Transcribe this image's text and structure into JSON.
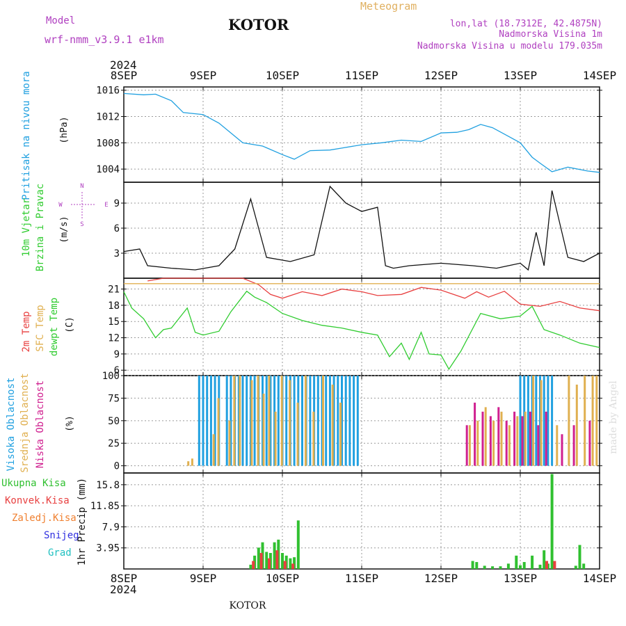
{
  "header": {
    "model_label": "Model",
    "model_name": "wrf-nmm_v3.9.1  e1km",
    "title": "KOTOR",
    "meteogram": "Meteogram",
    "lonlat": "lon,lat (18.7312E, 42.4875N)",
    "altitude": "Nadmorska Visina 1m",
    "model_altitude": "Nadmorska Visina u modelu 179.035m"
  },
  "footer": {
    "station": "KOTOR",
    "watermark": "made by Angel"
  },
  "colors": {
    "purple": "#b040c0",
    "gold": "#e0b060",
    "pressure": "#20a0e0",
    "temp": "#e84040",
    "dew": "#30cc30",
    "sfc": "#e0b050",
    "high_cloud": "#20a0e0",
    "mid_cloud": "#e0b050",
    "low_cloud": "#d02090",
    "total_precip": "#30c030",
    "conv_precip": "#e84040",
    "frozen_precip": "#f08030",
    "snow": "#3030e0",
    "hail": "#20c0c0"
  },
  "time_axis": {
    "year": "2024",
    "labels": [
      "8SEP",
      "9SEP",
      "10SEP",
      "11SEP",
      "12SEP",
      "13SEP",
      "14SEP"
    ]
  },
  "chart_data": [
    {
      "type": "line",
      "name": "pressure",
      "ylabel_name": "Pritisak na nivou mora",
      "ylabel_unit": "(hPa)",
      "ylim": [
        1002,
        1016.5
      ],
      "yticks": [
        1004,
        1008,
        1012,
        1016
      ],
      "series": [
        {
          "name": "",
          "x": [
            0,
            0.25,
            0.4,
            0.6,
            0.75,
            1.0,
            1.2,
            1.5,
            1.75,
            2.0,
            2.15,
            2.35,
            2.6,
            2.75,
            3.0,
            3.25,
            3.5,
            3.75,
            4.0,
            4.2,
            4.35,
            4.5,
            4.65,
            4.85,
            5.0,
            5.15,
            5.25,
            5.4,
            5.6,
            5.85,
            6.0
          ],
          "y": [
            1015.5,
            1015.3,
            1015.4,
            1014.4,
            1012.6,
            1012.3,
            1011.0,
            1008.0,
            1007.5,
            1006.2,
            1005.5,
            1006.8,
            1006.9,
            1007.2,
            1007.7,
            1008.0,
            1008.4,
            1008.2,
            1009.5,
            1009.6,
            1010.0,
            1010.8,
            1010.3,
            1009.0,
            1008.0,
            1005.8,
            1004.9,
            1003.6,
            1004.3,
            1003.7,
            1003.5
          ]
        }
      ]
    },
    {
      "type": "line",
      "name": "wind",
      "ylabel_name": "10m Vjetar",
      "ylabel_sub": "Brzina i Pravac",
      "ylabel_unit": "(m/s)",
      "compass": {
        "n": "N",
        "s": "S",
        "e": "E",
        "w": "W"
      },
      "ylim": [
        0,
        11.5
      ],
      "yticks": [
        3,
        6,
        9
      ],
      "series": [
        {
          "name": "",
          "x": [
            0,
            0.2,
            0.3,
            0.6,
            0.9,
            1.2,
            1.4,
            1.6,
            1.8,
            2.1,
            2.4,
            2.6,
            2.8,
            3.0,
            3.2,
            3.3,
            3.4,
            3.6,
            4.0,
            4.4,
            4.7,
            5.0,
            5.1,
            5.2,
            5.3,
            5.4,
            5.6,
            5.8,
            6.0
          ],
          "y": [
            3.2,
            3.5,
            1.5,
            1.2,
            1.0,
            1.5,
            3.5,
            9.5,
            2.5,
            2.0,
            2.8,
            11.0,
            9.0,
            8.0,
            8.5,
            1.5,
            1.2,
            1.5,
            1.8,
            1.5,
            1.2,
            1.8,
            1.0,
            5.5,
            1.5,
            10.5,
            2.5,
            2.0,
            3.0
          ]
        }
      ]
    },
    {
      "type": "line",
      "name": "temperature",
      "ylabel_name": "2m Temp",
      "ylabel_sfc": "SFC Temp",
      "ylabel_dew": "dewpt Temp",
      "ylabel_unit": "(C)",
      "ylim": [
        5,
        23
      ],
      "yticks": [
        6,
        9,
        12,
        15,
        18,
        21
      ],
      "series": [
        {
          "name": "",
          "x": [
            0.3,
            0.5,
            1.5,
            1.7,
            1.85,
            2.0,
            2.25,
            2.5,
            2.75,
            3.0,
            3.2,
            3.5,
            3.75,
            4.0,
            4.3,
            4.45,
            4.6,
            4.8,
            5.0,
            5.25,
            5.5,
            5.75,
            6.0
          ],
          "y": [
            22.5,
            23.0,
            23.0,
            21.8,
            20.0,
            19.3,
            20.5,
            19.8,
            21.0,
            20.5,
            19.8,
            20.0,
            21.3,
            20.8,
            19.3,
            20.5,
            19.5,
            20.6,
            18.2,
            17.8,
            18.7,
            17.5,
            17.0
          ]
        },
        {
          "name": "",
          "x": [
            0,
            6
          ],
          "y": [
            22.0,
            22.0
          ]
        },
        {
          "name": "",
          "x": [
            0,
            0.1,
            0.25,
            0.4,
            0.5,
            0.6,
            0.8,
            0.9,
            1.0,
            1.2,
            1.35,
            1.55,
            1.65,
            1.8,
            2.0,
            2.25,
            2.5,
            2.75,
            3.0,
            3.2,
            3.35,
            3.5,
            3.6,
            3.75,
            3.85,
            4.0,
            4.1,
            4.25,
            4.5,
            4.75,
            5.0,
            5.15,
            5.3,
            5.5,
            5.75,
            6.0
          ],
          "y": [
            20.5,
            17.5,
            15.5,
            12.0,
            13.5,
            13.8,
            17.5,
            13.0,
            12.5,
            13.2,
            16.8,
            20.6,
            19.5,
            18.5,
            16.5,
            15.2,
            14.3,
            13.8,
            13.0,
            12.5,
            8.5,
            11.0,
            8.0,
            13.0,
            9.0,
            8.8,
            6.2,
            9.5,
            16.5,
            15.5,
            16.0,
            17.8,
            13.5,
            12.5,
            11.0,
            10.2
          ]
        }
      ]
    },
    {
      "type": "bar",
      "name": "cloud",
      "ylabel_high": "Visoka Oblacnost",
      "ylabel_mid": "Srednja Oblacnost",
      "ylabel_low": "Niska  Oblacnost",
      "ylabel_unit": "(%)",
      "ylim": [
        -8,
        100
      ],
      "yticks": [
        0,
        25,
        50,
        75,
        100
      ],
      "series": [
        {
          "name": "",
          "x": [
            0.95,
            1.0,
            1.05,
            1.1,
            1.15,
            1.2,
            1.3,
            1.35,
            1.4,
            1.45,
            1.5,
            1.55,
            1.6,
            1.65,
            1.7,
            1.75,
            1.8,
            1.85,
            1.9,
            1.95,
            2.0,
            2.05,
            2.1,
            2.15,
            2.2,
            2.25,
            2.3,
            2.35,
            2.4,
            2.45,
            2.5,
            2.55,
            2.6,
            2.65,
            2.7,
            2.75,
            2.8,
            2.85,
            2.9,
            2.95,
            5.0,
            5.05,
            5.1,
            5.15,
            5.2,
            5.25,
            5.3,
            5.35,
            5.4
          ],
          "values": [
            100,
            100,
            100,
            100,
            100,
            100,
            100,
            100,
            100,
            100,
            100,
            100,
            100,
            100,
            100,
            100,
            100,
            100,
            100,
            100,
            100,
            100,
            100,
            100,
            100,
            100,
            100,
            100,
            100,
            100,
            100,
            100,
            100,
            100,
            100,
            100,
            100,
            100,
            100,
            100,
            100,
            100,
            100,
            100,
            100,
            100,
            100,
            100,
            100
          ]
        },
        {
          "name": "",
          "x": [
            0.8,
            0.85,
            1.12,
            1.18,
            1.32,
            1.38,
            1.45,
            1.6,
            1.68,
            1.75,
            1.82,
            1.9,
            1.98,
            2.08,
            2.18,
            2.28,
            2.38,
            2.5,
            2.62,
            2.72,
            4.35,
            4.45,
            4.55,
            4.65,
            4.75,
            4.85,
            4.95,
            5.05,
            5.15,
            5.25,
            5.45,
            5.6,
            5.7,
            5.8,
            5.9,
            5.95
          ],
          "values": [
            5,
            8,
            35,
            75,
            50,
            100,
            100,
            95,
            100,
            80,
            100,
            60,
            100,
            95,
            70,
            100,
            60,
            100,
            90,
            70,
            45,
            50,
            65,
            50,
            60,
            45,
            55,
            60,
            100,
            95,
            45,
            100,
            90,
            100,
            100,
            100
          ]
        },
        {
          "name": "",
          "x": [
            4.3,
            4.4,
            4.5,
            4.6,
            4.7,
            4.8,
            4.9,
            5.0,
            5.1,
            5.2,
            5.3,
            5.5,
            5.65,
            5.85
          ],
          "values": [
            45,
            70,
            60,
            55,
            65,
            50,
            60,
            55,
            60,
            45,
            60,
            35,
            45,
            50
          ]
        }
      ]
    },
    {
      "type": "bar",
      "name": "precip",
      "ylabel_name": "1hr Precip",
      "ylabel_unit": "(mm)",
      "legend": [
        "Ukupna  Kisa",
        "Konvek.Kisa",
        "Zaledj.Kisa",
        "Snijeg",
        "Grad"
      ],
      "ylim": [
        0,
        18
      ],
      "yticks": [
        3.95,
        7.9,
        11.85,
        15.8
      ],
      "series": [
        {
          "name": "",
          "x": [
            1.6,
            1.65,
            1.7,
            1.75,
            1.8,
            1.85,
            1.9,
            1.95,
            2.0,
            2.05,
            2.1,
            2.15,
            2.2,
            4.4,
            4.45,
            4.55,
            4.65,
            4.75,
            4.85,
            4.95,
            5.0,
            5.05,
            5.15,
            5.25,
            5.3,
            5.35,
            5.4,
            5.7,
            5.75,
            5.8
          ],
          "values": [
            0.8,
            2.5,
            4.0,
            5.0,
            3.2,
            3.0,
            5.0,
            5.5,
            3.0,
            2.5,
            2.0,
            2.2,
            9.1,
            1.5,
            1.3,
            0.6,
            0.5,
            0.5,
            1.0,
            2.5,
            0.7,
            1.3,
            2.5,
            0.8,
            3.5,
            1.0,
            17.8,
            0.6,
            4.5,
            1.0
          ]
        },
        {
          "name": "",
          "x": [
            1.62,
            1.72,
            1.82,
            1.92,
            2.02,
            2.12,
            5.32,
            5.42
          ],
          "values": [
            1.5,
            3.0,
            2.0,
            3.5,
            1.5,
            1.0,
            1.5,
            1.5
          ]
        }
      ]
    }
  ]
}
